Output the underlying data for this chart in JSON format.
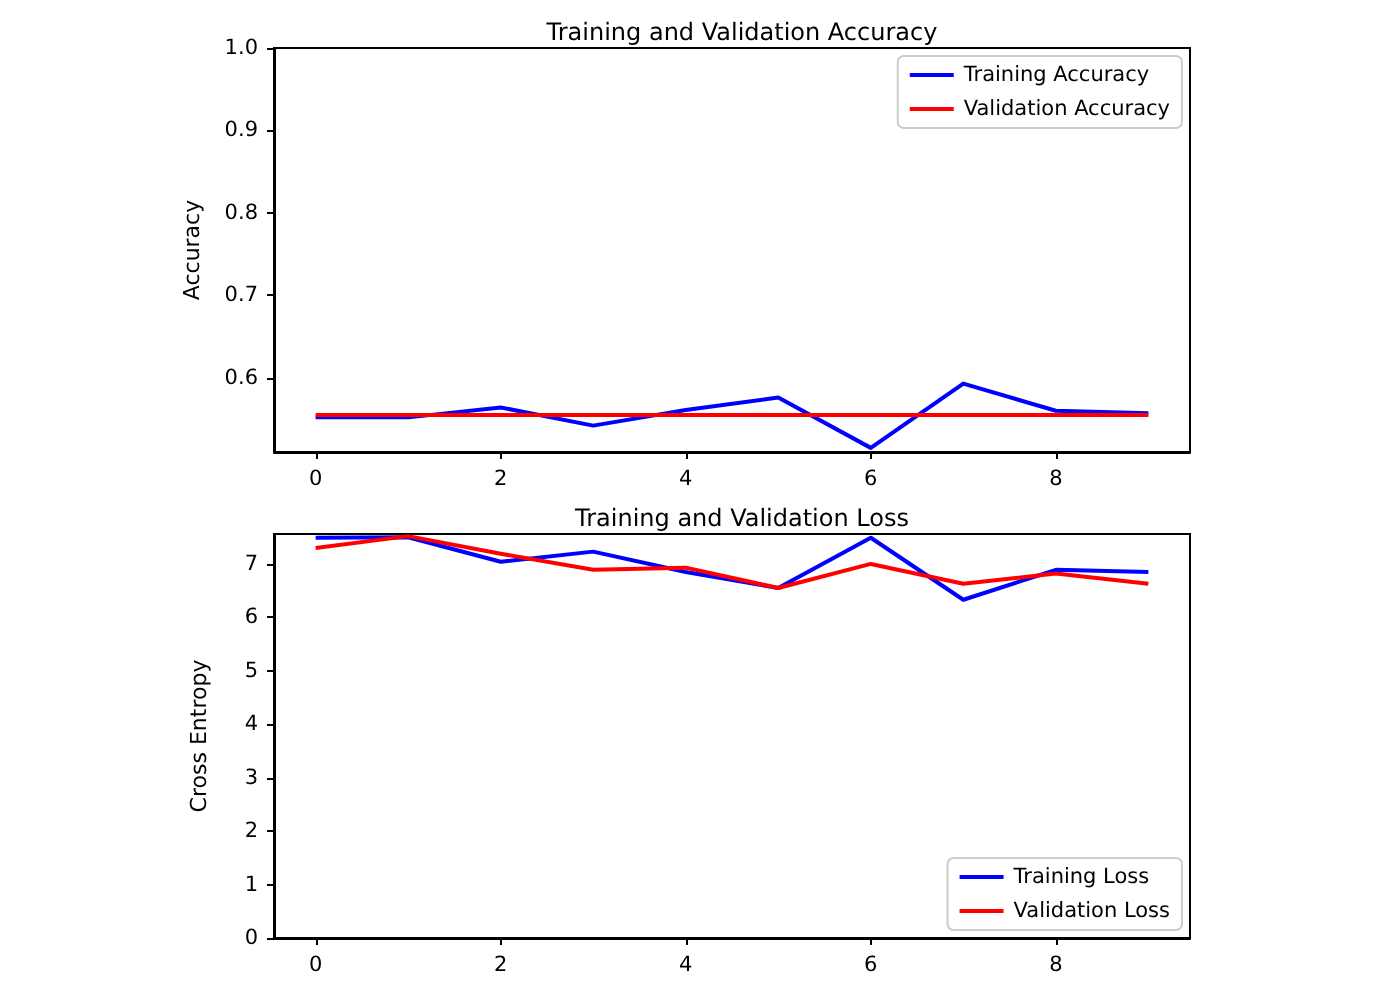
{
  "chart_data": [
    {
      "type": "line",
      "title": "Training and Validation Accuracy",
      "ylabel": "Accuracy",
      "x": [
        0,
        1,
        2,
        3,
        4,
        5,
        6,
        7,
        8,
        9
      ],
      "series": [
        {
          "name": "Training Accuracy",
          "color": "#0000ff",
          "values": [
            0.552,
            0.552,
            0.564,
            0.542,
            0.561,
            0.576,
            0.515,
            0.593,
            0.56,
            0.557
          ]
        },
        {
          "name": "Validation Accuracy",
          "color": "#ff0000",
          "values": [
            0.555,
            0.555,
            0.555,
            0.555,
            0.555,
            0.555,
            0.555,
            0.555,
            0.555,
            0.555
          ]
        }
      ],
      "xlim": [
        -0.45,
        9.45
      ],
      "xticks": [
        0,
        2,
        4,
        6,
        8
      ],
      "ylim": [
        0.51,
        1.0
      ],
      "yticks": [
        0.6,
        0.7,
        0.8,
        0.9,
        {
          "value": 1.0,
          "label": "1.0"
        }
      ],
      "legend": "top right",
      "grid": false,
      "marker": "none",
      "line_style": "solid"
    },
    {
      "type": "line",
      "title": "Training and Validation Loss",
      "ylabel": "Cross Entropy",
      "x": [
        0,
        1,
        2,
        3,
        4,
        5,
        6,
        7,
        8,
        9
      ],
      "series": [
        {
          "name": "Training Loss",
          "color": "#0000ff",
          "values": [
            7.49,
            7.5,
            7.04,
            7.23,
            6.85,
            6.55,
            7.49,
            6.33,
            6.89,
            6.85
          ]
        },
        {
          "name": "Validation Loss",
          "color": "#ff0000",
          "values": [
            7.3,
            7.52,
            7.19,
            6.89,
            6.93,
            6.55,
            7.0,
            6.63,
            6.82,
            6.63
          ]
        }
      ],
      "xlim": [
        -0.45,
        9.45
      ],
      "xticks": [
        0,
        2,
        4,
        6,
        8
      ],
      "ylim": [
        0,
        7.56
      ],
      "yticks": [
        0,
        1,
        2,
        3,
        4,
        5,
        6,
        7
      ],
      "legend": "bottom right",
      "grid": false,
      "marker": "none",
      "line_style": "solid"
    }
  ]
}
